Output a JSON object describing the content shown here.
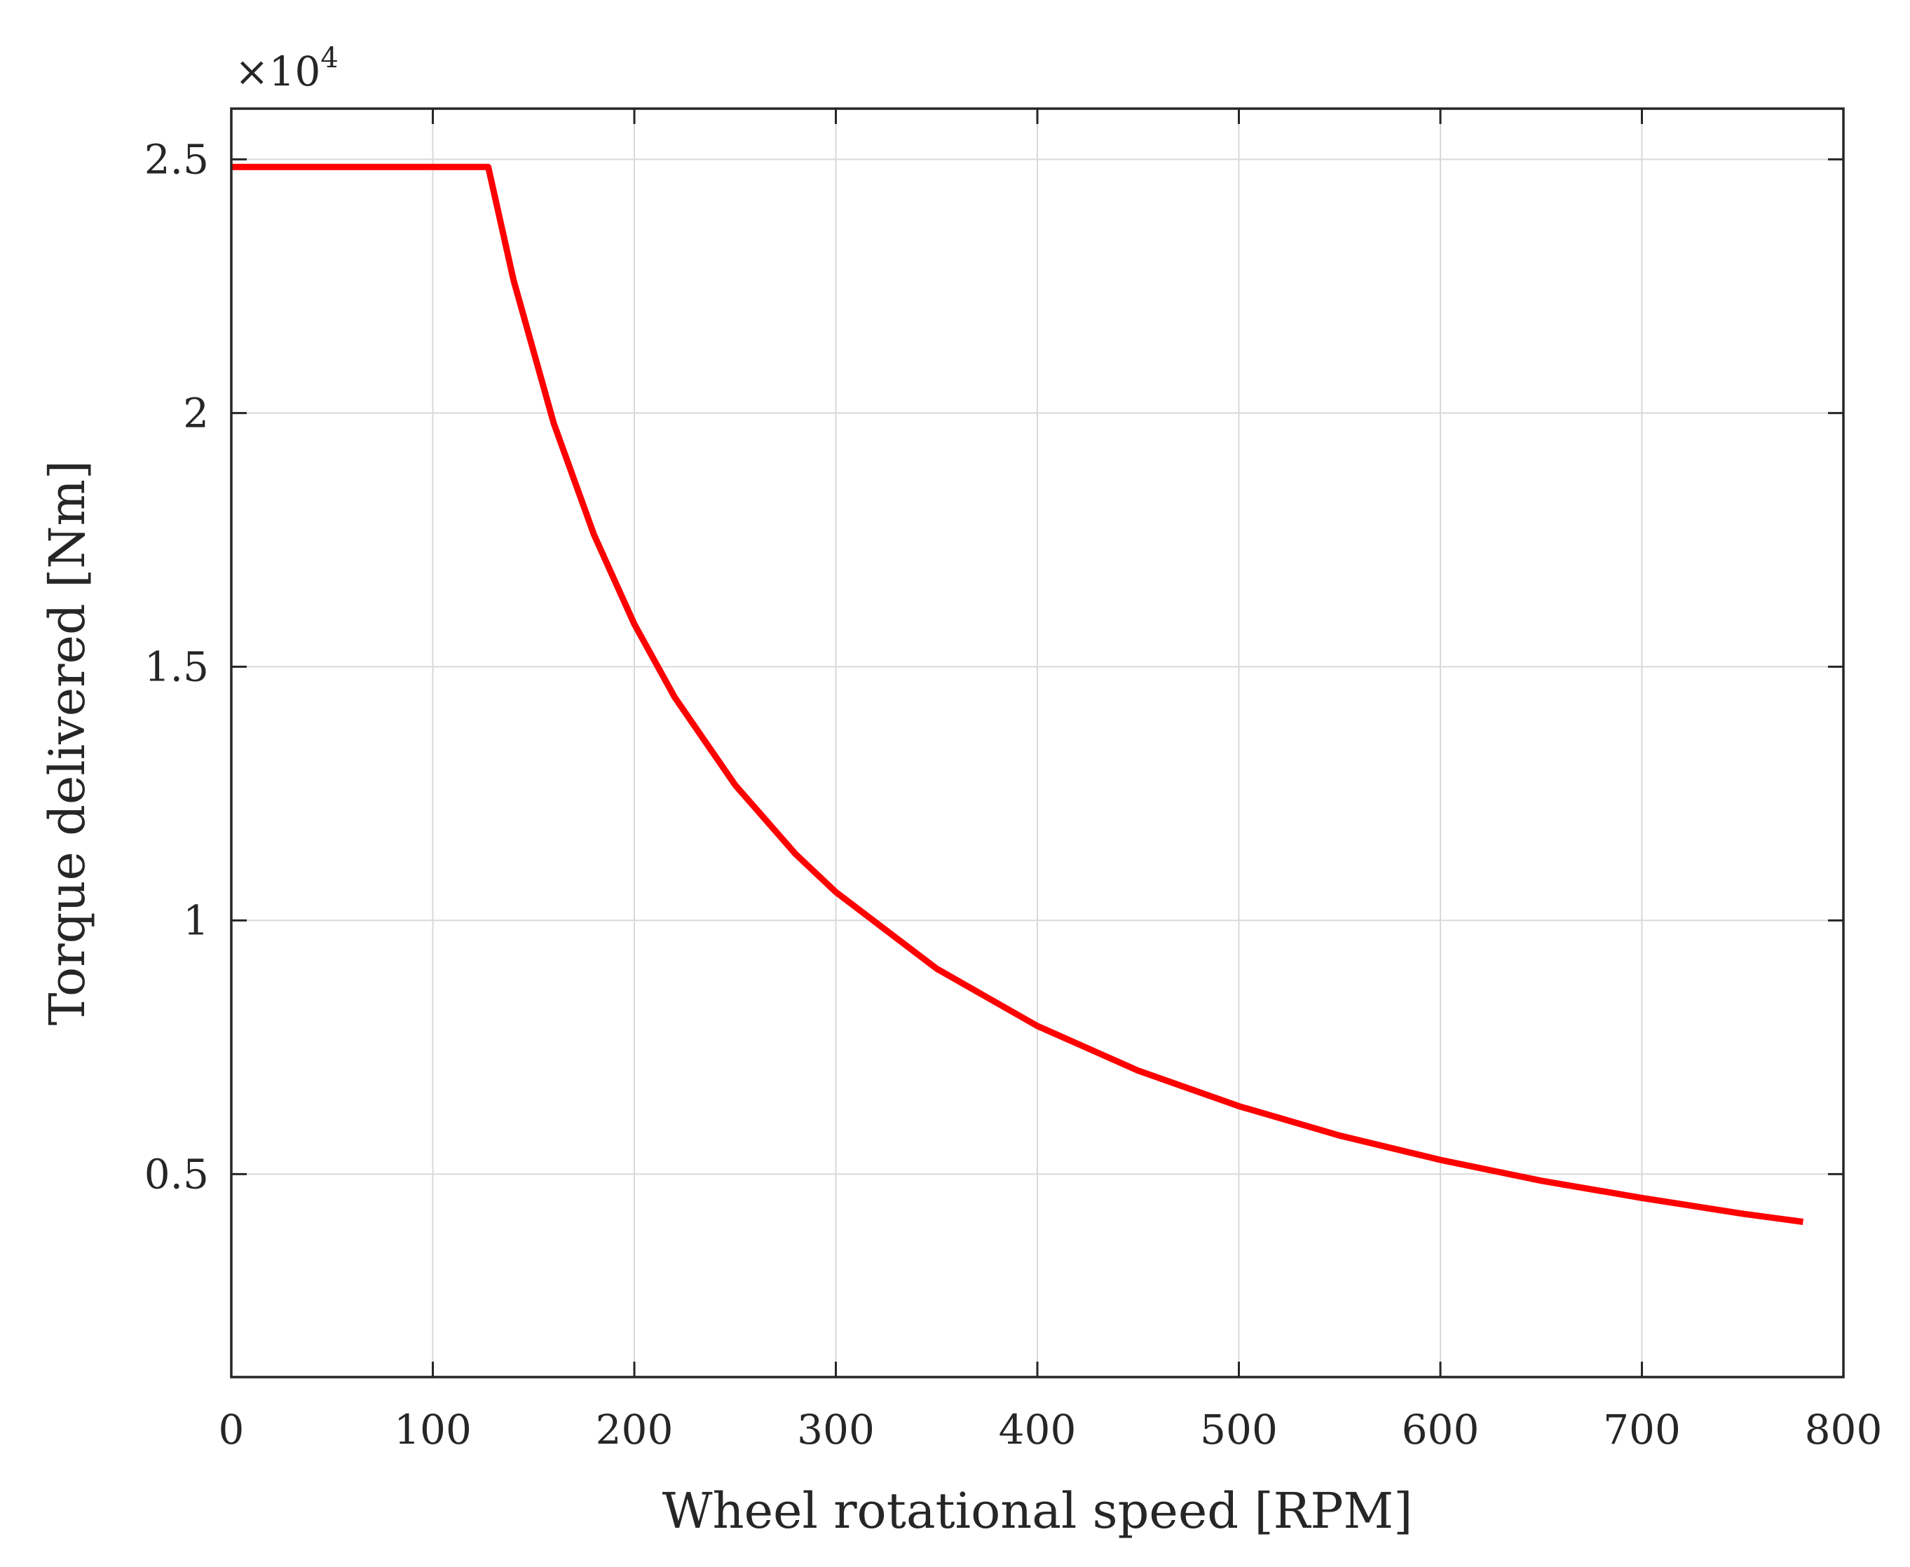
{
  "chart_data": {
    "type": "line",
    "title": "",
    "xlabel": "Wheel rotational speed [RPM]",
    "ylabel": "Torque delivered [Nm]",
    "xlim": [
      0,
      800
    ],
    "ylim": [
      1000,
      26000
    ],
    "x_ticks": [
      0,
      100,
      200,
      300,
      400,
      500,
      600,
      700,
      800
    ],
    "x_tick_labels": [
      "0",
      "100",
      "200",
      "300",
      "400",
      "500",
      "600",
      "700",
      "800"
    ],
    "y_ticks": [
      5000,
      10000,
      15000,
      20000,
      25000
    ],
    "y_tick_labels": [
      "0.5",
      "1",
      "1.5",
      "2",
      "2.5"
    ],
    "y_exponent": {
      "base": "×10",
      "power": "4"
    },
    "grid": true,
    "series": [
      {
        "name": "Torque delivered",
        "color": "#ff0000",
        "x": [
          0,
          20,
          40,
          60,
          80,
          100,
          110,
          120,
          127.5,
          140,
          160,
          180,
          200,
          220,
          250,
          280,
          300,
          350,
          400,
          450,
          500,
          550,
          600,
          650,
          700,
          750,
          780
        ],
        "y": [
          24850,
          24850,
          24850,
          24850,
          24850,
          24850,
          24850,
          24850,
          24850,
          22630,
          19800,
          17600,
          15840,
          14400,
          12670,
          11310,
          10560,
          9050,
          7920,
          7040,
          6340,
          5760,
          5280,
          4870,
          4530,
          4220,
          4060
        ]
      }
    ]
  }
}
